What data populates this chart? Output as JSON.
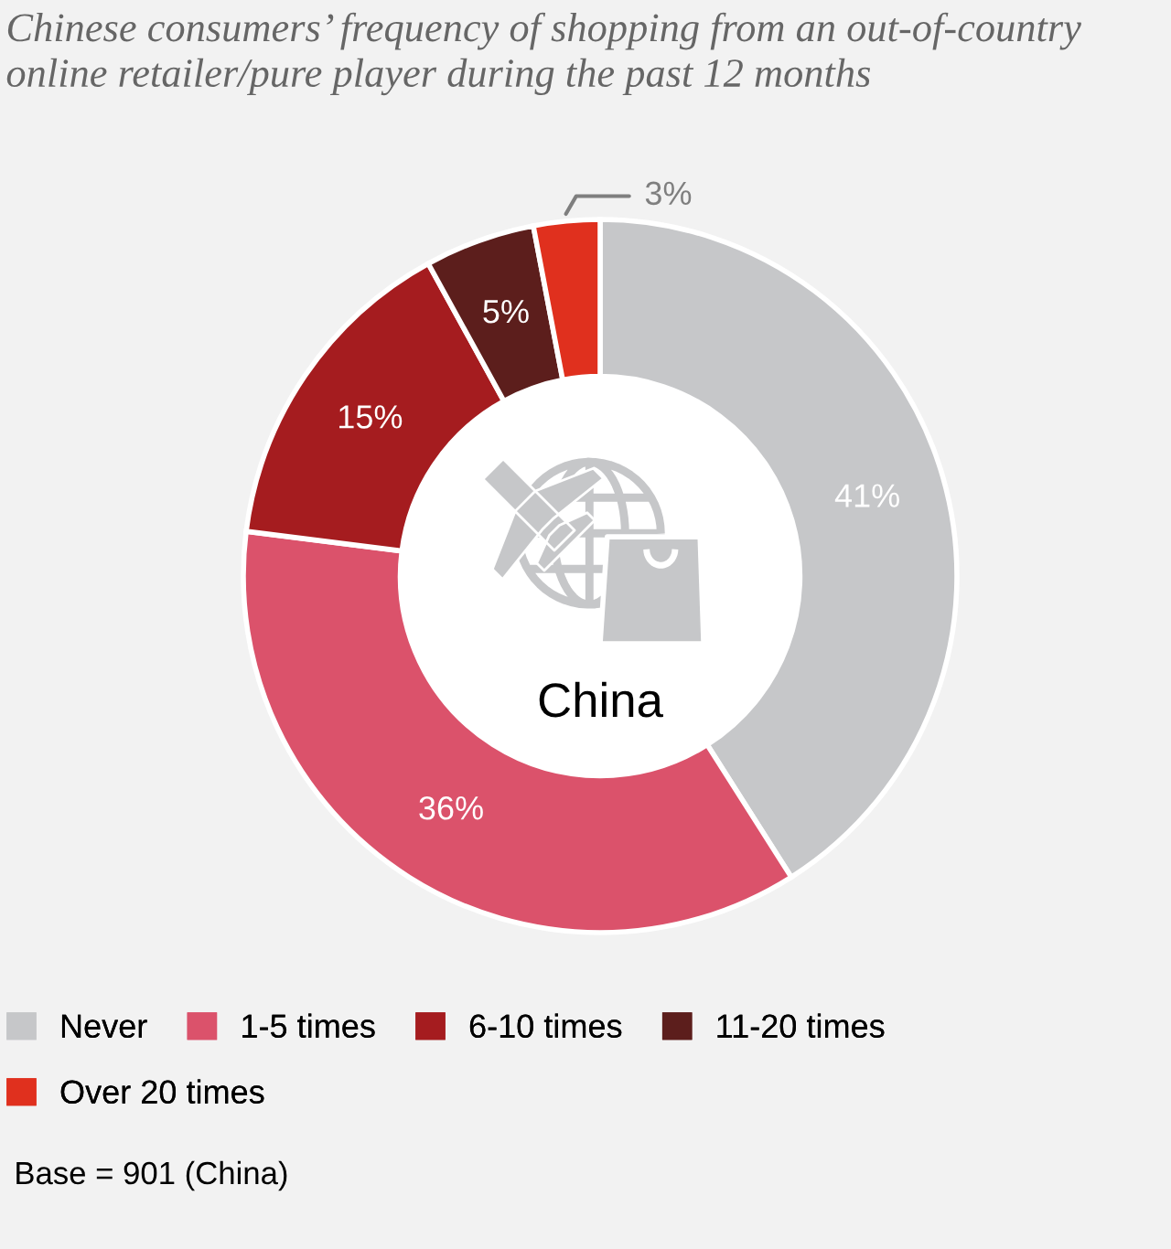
{
  "chart_data": {
    "type": "donut",
    "title": "Chinese consumers’ frequency of shopping from an out-of-country online retailer/pure player during the past 12 months",
    "categories": [
      "Never",
      "1-5 times",
      "6-10 times",
      "11-20 times",
      "Over 20 times"
    ],
    "values": [
      41,
      36,
      15,
      5,
      3
    ],
    "colors": [
      "#c6c7c9",
      "#db526b",
      "#a51c1f",
      "#5c1e1c",
      "#e0301e"
    ],
    "value_labels": [
      "41%",
      "36%",
      "15%",
      "5%",
      "3%"
    ],
    "legend": "bottom",
    "annotations": [
      "China",
      "Base = 901 (China)"
    ]
  }
}
